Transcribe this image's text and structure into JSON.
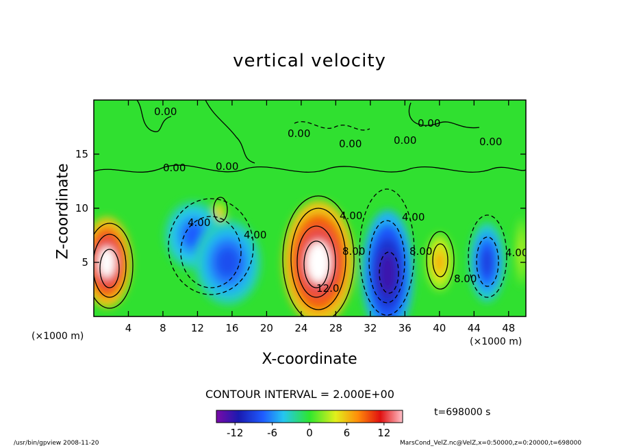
{
  "chart_data": {
    "type": "heatmap",
    "title": "vertical velocity",
    "xlabel": "X-coordinate",
    "ylabel": "Z-coordinate",
    "x_unit": "(×1000 m)",
    "y_unit": "(×1000 m)",
    "xlim": [
      0,
      50
    ],
    "ylim": [
      0,
      20
    ],
    "x_ticks": [
      4,
      8,
      12,
      16,
      20,
      24,
      28,
      32,
      36,
      40,
      44,
      48
    ],
    "y_ticks": [
      5,
      10,
      15
    ],
    "contour_interval_label": "CONTOUR INTERVAL = 2.000E+00",
    "time_label": "t=698000  s",
    "colorbar_ticks": [
      -12,
      -6,
      0,
      6,
      12
    ],
    "colorbar_range": [
      -15,
      15
    ],
    "contour_labels": [
      "0.00",
      "0.00",
      "0.00",
      "0.00",
      "0.00",
      "0.00",
      "0.00",
      "0.00",
      "4.00",
      "4.00",
      "4.00",
      "4.00",
      "4.00",
      "8.00",
      "8.00",
      "8.00",
      "12.0"
    ],
    "cells": [
      {
        "x": 1.5,
        "z": 5.0,
        "value": 15
      },
      {
        "x": 14.5,
        "z": 9.5,
        "value": 6
      },
      {
        "x": 11.5,
        "z": 7.5,
        "value": -7
      },
      {
        "x": 15.5,
        "z": 5.0,
        "value": -8
      },
      {
        "x": 26.0,
        "z": 5.0,
        "value": 15
      },
      {
        "x": 34.0,
        "z": 4.0,
        "value": -13
      },
      {
        "x": 40.0,
        "z": 5.0,
        "value": 6
      },
      {
        "x": 45.5,
        "z": 5.0,
        "value": -9
      },
      {
        "x": 49.5,
        "z": 6.0,
        "value": 3
      }
    ]
  },
  "footer": {
    "left": "/usr/bin/gpview  2008-11-20",
    "right": "MarsCond_VelZ.nc@VelZ,x=0:50000,z=0:20000,t=698000"
  }
}
